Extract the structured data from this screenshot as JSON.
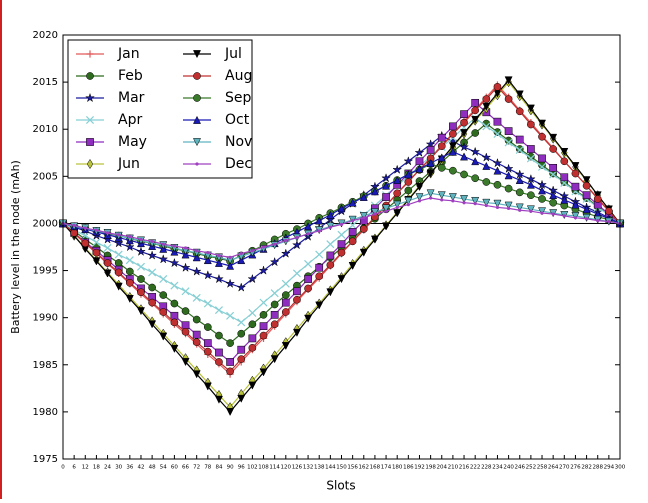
{
  "chart_data": {
    "type": "line",
    "xlabel": "Slots",
    "ylabel": "Battery level in the node (mAh)",
    "x": [
      0,
      6,
      12,
      18,
      24,
      30,
      36,
      42,
      48,
      54,
      60,
      66,
      72,
      78,
      84,
      90,
      96,
      102,
      108,
      114,
      120,
      126,
      132,
      138,
      144,
      150,
      156,
      162,
      168,
      174,
      180,
      186,
      192,
      198,
      204,
      210,
      216,
      222,
      228,
      234,
      240,
      246,
      252,
      258,
      264,
      270,
      276,
      282,
      288,
      294,
      300
    ],
    "xlim": [
      0,
      300
    ],
    "xticks": [
      0,
      6,
      12,
      18,
      24,
      30,
      36,
      42,
      48,
      54,
      60,
      66,
      72,
      78,
      84,
      90,
      96,
      102,
      108,
      114,
      120,
      126,
      132,
      138,
      144,
      150,
      156,
      162,
      168,
      174,
      180,
      186,
      192,
      198,
      204,
      210,
      216,
      222,
      228,
      234,
      240,
      246,
      252,
      258,
      264,
      270,
      276,
      282,
      288,
      294,
      300
    ],
    "ylim": [
      1975,
      2020
    ],
    "yticks": [
      1975,
      1980,
      1985,
      1990,
      1995,
      2000,
      2005,
      2010,
      2015,
      2020
    ],
    "reference_line": 2000,
    "legend_position": "upper left",
    "legend_columns": 2,
    "series": [
      {
        "name": "Jan",
        "color": "#e05a5a",
        "marker": "+",
        "values": [
          2000,
          1998.9,
          1997.9,
          1996.8,
          1995.7,
          1994.7,
          1993.6,
          1992.5,
          1991.5,
          1990.4,
          1989.3,
          1988.3,
          1987.2,
          1986.1,
          1985.1,
          1984,
          1985.3,
          1986.6,
          1987.8,
          1989.1,
          1990.4,
          1991.7,
          1993,
          1994.2,
          1995.5,
          1996.8,
          1998.1,
          1999.3,
          2000.6,
          2001.9,
          2003.2,
          2004.5,
          2005.7,
          2007,
          2008.3,
          2009.6,
          2010.9,
          2012.1,
          2013.4,
          2014.7,
          2013.4,
          2012,
          2010.7,
          2009.3,
          2008,
          2006.6,
          2005.3,
          2004,
          2002.7,
          2001.3,
          2000
        ]
      },
      {
        "name": "Feb",
        "color": "#2e6b1f",
        "marker": "o",
        "values": [
          2000,
          1999.2,
          1998.3,
          1997.5,
          1996.6,
          1995.8,
          1994.9,
          1994.1,
          1993.2,
          1992.4,
          1991.5,
          1990.7,
          1989.8,
          1989,
          1988.1,
          1987.3,
          1988.3,
          1989.3,
          1990.3,
          1991.4,
          1992.4,
          1993.4,
          1994.4,
          1995.4,
          1996.4,
          1997.4,
          1998.4,
          1999.5,
          2000.5,
          2001.5,
          2002.5,
          2003.5,
          2004.5,
          2005.5,
          2006.5,
          2007.6,
          2008.6,
          2009.6,
          2010.6,
          2009.7,
          2008.8,
          2007.9,
          2007.1,
          2006.2,
          2005.3,
          2004.4,
          2003.5,
          2002.7,
          2001.8,
          2000.9,
          2000
        ]
      },
      {
        "name": "Mar",
        "color": "#1c1ca0",
        "marker": "*",
        "values": [
          2000,
          1999.6,
          1999.2,
          1998.7,
          1998.3,
          1997.9,
          1997.5,
          1997,
          1996.6,
          1996.2,
          1995.8,
          1995.3,
          1994.9,
          1994.5,
          1994.1,
          1993.6,
          1993.2,
          1994.1,
          1995,
          1995.9,
          1996.8,
          1997.7,
          1998.6,
          1999.5,
          2000.4,
          2001.3,
          2002.1,
          2003,
          2003.9,
          2004.8,
          2005.7,
          2006.6,
          2007.5,
          2008.4,
          2009.3,
          2008.7,
          2008.1,
          2007.6,
          2007,
          2006.4,
          2005.8,
          2005.2,
          2004.7,
          2004.1,
          2003.5,
          2002.9,
          2002.3,
          2001.7,
          2001.2,
          2000.6,
          2000
        ]
      },
      {
        "name": "Apr",
        "color": "#86cfd4",
        "marker": "x",
        "values": [
          2000,
          1999.3,
          1998.7,
          1998,
          1997.4,
          1996.7,
          1996.1,
          1995.4,
          1994.8,
          1994.1,
          1993.4,
          1992.8,
          1992.1,
          1991.5,
          1990.8,
          1990.2,
          1989.5,
          1990.5,
          1991.6,
          1992.6,
          1993.6,
          1994.7,
          1995.7,
          1996.7,
          1997.8,
          1998.8,
          1999.8,
          2000.9,
          2001.9,
          2003,
          2004,
          2005,
          2006.1,
          2007.1,
          2008.1,
          2009.1,
          2010.2,
          2011.2,
          2010.3,
          2009.5,
          2008.6,
          2007.8,
          2006.9,
          2006,
          2005.2,
          2004.3,
          2003.4,
          2002.6,
          2001.7,
          2000.9,
          2000
        ]
      },
      {
        "name": "May",
        "color": "#8e2dbe",
        "marker": "s",
        "values": [
          2000,
          1999,
          1998,
          1997.1,
          1996.1,
          1995.1,
          1994.1,
          1993.1,
          1992.2,
          1991.2,
          1990.2,
          1989.2,
          1988.2,
          1987.3,
          1986.3,
          1985.3,
          1986.6,
          1987.8,
          1989.1,
          1990.3,
          1991.6,
          1992.8,
          1994.1,
          1995.3,
          1996.6,
          1997.8,
          1999.1,
          2000.3,
          2001.6,
          2002.8,
          2004.1,
          2005.3,
          2006.6,
          2007.8,
          2009.1,
          2010.3,
          2011.6,
          2012.8,
          2011.8,
          2010.8,
          2009.8,
          2008.9,
          2007.9,
          2006.9,
          2005.9,
          2004.9,
          2003.9,
          2003,
          2002,
          2001,
          2000
        ]
      },
      {
        "name": "Jun",
        "color": "#b9c23c",
        "marker": "d",
        "values": [
          2000,
          1998.7,
          1997.4,
          1996.1,
          1994.8,
          1993.5,
          1992.2,
          1990.9,
          1989.6,
          1988.3,
          1987,
          1985.7,
          1984.4,
          1983.1,
          1981.8,
          1980.5,
          1981.9,
          1983.3,
          1984.6,
          1986,
          1987.4,
          1988.8,
          1990.2,
          1991.5,
          1992.9,
          1994.3,
          1995.7,
          1997.1,
          1998.4,
          1999.8,
          2001.2,
          2002.6,
          2004,
          2005.3,
          2006.7,
          2008.1,
          2009.5,
          2010.9,
          2012.2,
          2013.6,
          2015,
          2013.5,
          2012,
          2010.5,
          2009,
          2007.5,
          2006,
          2004.5,
          2003,
          2001.5,
          2000
        ]
      },
      {
        "name": "Jul",
        "color": "#000000",
        "marker": "v",
        "values": [
          2000,
          1998.7,
          1997.3,
          1996,
          1994.7,
          1993.3,
          1992,
          1990.7,
          1989.3,
          1988,
          1986.7,
          1985.3,
          1984,
          1982.7,
          1981.3,
          1980,
          1981.4,
          1982.8,
          1984.2,
          1985.6,
          1987,
          1988.4,
          1989.9,
          1991.3,
          1992.7,
          1994.1,
          1995.5,
          1996.9,
          1998.3,
          1999.7,
          2001.1,
          2002.5,
          2003.9,
          2005.3,
          2006.8,
          2008.2,
          2009.6,
          2011,
          2012.4,
          2013.8,
          2015.2,
          2013.7,
          2012.2,
          2010.6,
          2009.1,
          2007.6,
          2006.1,
          2004.6,
          2003,
          2001.5,
          2000
        ]
      },
      {
        "name": "Aug",
        "color": "#c03030",
        "marker": "o",
        "values": [
          2000,
          1999,
          1997.9,
          1996.9,
          1995.8,
          1994.8,
          1993.7,
          1992.7,
          1991.6,
          1990.6,
          1989.5,
          1988.5,
          1987.4,
          1986.4,
          1985.3,
          1984.3,
          1985.6,
          1986.8,
          1988.1,
          1989.3,
          1990.6,
          1991.9,
          1993.1,
          1994.4,
          1995.6,
          1996.9,
          1998.1,
          1999.4,
          2000.7,
          2001.9,
          2003.2,
          2004.4,
          2005.7,
          2006.9,
          2008.2,
          2009.5,
          2010.7,
          2012,
          2013.2,
          2014.5,
          2013.2,
          2011.9,
          2010.5,
          2009.2,
          2007.9,
          2006.6,
          2005.3,
          2004,
          2002.6,
          2001.3,
          2000
        ]
      },
      {
        "name": "Sep",
        "color": "#3a7a2a",
        "marker": "o",
        "values": [
          2000,
          1999.7,
          1999.5,
          1999.2,
          1998.9,
          1998.7,
          1998.4,
          1998.1,
          1997.9,
          1997.6,
          1997.3,
          1997.1,
          1996.8,
          1996.5,
          1996.3,
          1996,
          1996.6,
          1997.1,
          1997.7,
          1998.3,
          1998.9,
          1999.4,
          2000,
          2000.6,
          2001.1,
          2001.7,
          2002.3,
          2002.9,
          2003.4,
          2004,
          2004.6,
          2005.2,
          2005.7,
          2006.3,
          2005.9,
          2005.6,
          2005.2,
          2004.8,
          2004.4,
          2004.1,
          2003.7,
          2003.3,
          2003,
          2002.6,
          2002.2,
          2001.9,
          2001.5,
          2001.1,
          2000.7,
          2000.4,
          2000
        ]
      },
      {
        "name": "Oct",
        "color": "#1a1ab4",
        "marker": "^",
        "values": [
          2000,
          1999.7,
          1999.4,
          1999.1,
          1998.8,
          1998.5,
          1998.2,
          1997.9,
          1997.6,
          1997.3,
          1997,
          1996.7,
          1996.4,
          1996.1,
          1995.8,
          1995.5,
          1996.1,
          1996.7,
          1997.3,
          1997.9,
          1998.5,
          1999.1,
          1999.7,
          2000.3,
          2000.9,
          2001.6,
          2002.2,
          2002.8,
          2003.4,
          2004,
          2004.6,
          2005.2,
          2005.8,
          2006.4,
          2007,
          2007.6,
          2007.1,
          2006.6,
          2006.1,
          2005.6,
          2005.1,
          2004.6,
          2004.1,
          2003.5,
          2003,
          2002.5,
          2002,
          2001.5,
          2001,
          2000.5,
          2000
        ]
      },
      {
        "name": "Nov",
        "color": "#5fb4c0",
        "marker": "v",
        "values": [
          2000,
          1999.7,
          1999.5,
          1999.2,
          1999,
          1998.7,
          1998.4,
          1998.2,
          1997.9,
          1997.7,
          1997.4,
          1997.1,
          1996.9,
          1996.6,
          1996.4,
          1996.1,
          1996.5,
          1996.9,
          1997.3,
          1997.7,
          1998.1,
          1998.5,
          1998.9,
          1999.3,
          1999.7,
          2000,
          2000.4,
          2000.8,
          2001.2,
          2001.6,
          2002,
          2002.4,
          2002.8,
          2003.2,
          2003,
          2002.8,
          2002.6,
          2002.4,
          2002.2,
          2002.1,
          2001.9,
          2001.7,
          2001.5,
          2001.3,
          2001.1,
          2000.9,
          2000.8,
          2000.6,
          2000.4,
          2000.2,
          2000
        ]
      },
      {
        "name": "Dec",
        "color": "#a040c0",
        "marker": ".",
        "values": [
          2000,
          1999.8,
          1999.5,
          1999.3,
          1999,
          1998.8,
          1998.6,
          1998.3,
          1998.1,
          1997.8,
          1997.6,
          1997.4,
          1997.1,
          1996.9,
          1996.6,
          1996.4,
          1996.8,
          1997.1,
          1997.5,
          1997.8,
          1998.2,
          1998.5,
          1998.9,
          1999.2,
          1999.6,
          1999.9,
          2000.3,
          2000.6,
          2001,
          2001.3,
          2001.7,
          2002,
          2002.4,
          2002.7,
          2002.5,
          2002.4,
          2002.2,
          2002.1,
          2001.9,
          2001.7,
          2001.6,
          2001.4,
          2001.3,
          2001.1,
          2001,
          2000.8,
          2000.6,
          2000.5,
          2000.3,
          2000.2,
          2000
        ]
      }
    ]
  }
}
